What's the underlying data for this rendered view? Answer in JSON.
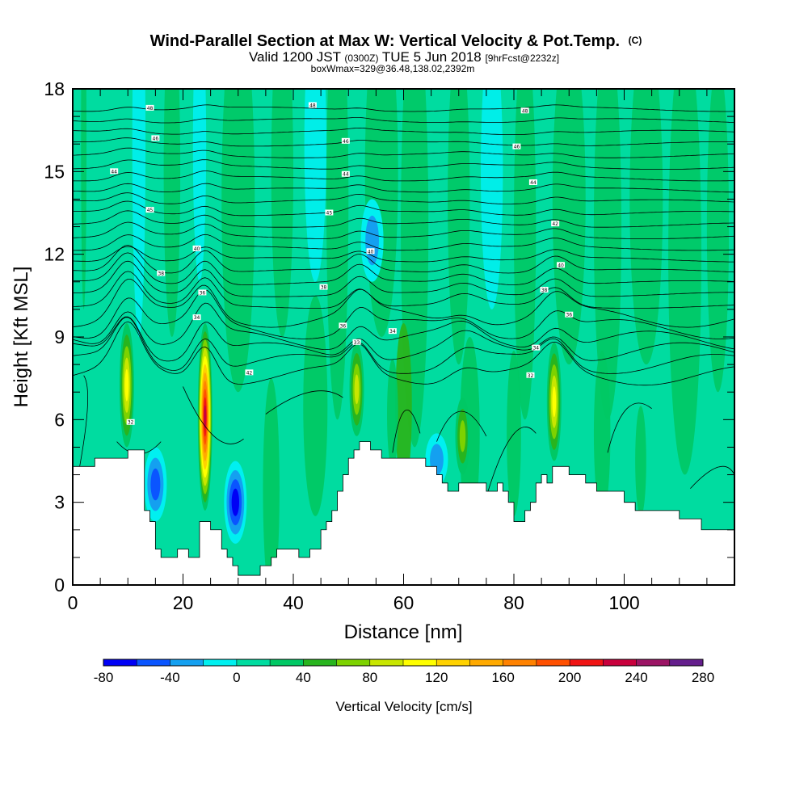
{
  "chart_data": {
    "type": "heatmap",
    "title": "Wind-Parallel Section at Max W: Vertical Velocity & Pot.Temp.",
    "title_suffix": "(C)",
    "subtitle_lead": "Valid 1200 JST",
    "subtitle_utc": "(0300Z)",
    "subtitle_date": "TUE 5 Jun 2018",
    "subtitle_fcst": "[9hrFcst@2232z]",
    "subtitle2": "boxWmax=329@36.48,138.02,2392m",
    "xlabel": "Distance [nm]",
    "ylabel": "Height [Kft MSL]",
    "xlim": [
      0,
      120
    ],
    "ylim": [
      0,
      18
    ],
    "x_ticks": [
      "0",
      "20",
      "40",
      "60",
      "80",
      "100"
    ],
    "y_ticks": [
      "0",
      "3",
      "6",
      "9",
      "12",
      "15",
      "18"
    ],
    "colorbar": {
      "label": "Vertical Velocity [cm/s]",
      "min": -80,
      "max": 280,
      "tick_labels": [
        "-80",
        "-40",
        "0",
        "40",
        "80",
        "120",
        "160",
        "200",
        "240",
        "280"
      ],
      "colors": [
        "#0000f5",
        "#0a55ff",
        "#14a0f0",
        "#00f0f0",
        "#00dca0",
        "#00c864",
        "#28b41e",
        "#7dd200",
        "#c8e600",
        "#ffff00",
        "#ffd200",
        "#ffaa00",
        "#ff8200",
        "#ff5000",
        "#f01414",
        "#c8003c",
        "#9b1464",
        "#641e8c"
      ]
    },
    "terrain": {
      "x": [
        0,
        3,
        4,
        7,
        10,
        11,
        13,
        14,
        15,
        16,
        18,
        19,
        20,
        21,
        22,
        23,
        24,
        25,
        26,
        27,
        28,
        29,
        30,
        31,
        32,
        33,
        34,
        35,
        36,
        37,
        38,
        39,
        40,
        41,
        42,
        43,
        44,
        45,
        46,
        47,
        48,
        49,
        50,
        51,
        52,
        53,
        54,
        55,
        56,
        57,
        58,
        59,
        60,
        61,
        62,
        63,
        64,
        65,
        66,
        67,
        68,
        69,
        70,
        71,
        72,
        73,
        74,
        75,
        76,
        77,
        78,
        79,
        80,
        81,
        82,
        83,
        84,
        85,
        86,
        87,
        88,
        89,
        90,
        91,
        92,
        93,
        94,
        95,
        96,
        97,
        98,
        99,
        100,
        101,
        102,
        103,
        104,
        105,
        106,
        107,
        108,
        109,
        110,
        111,
        112,
        113,
        114,
        115,
        116,
        117,
        118,
        119,
        120
      ],
      "height_kft": [
        4.3,
        4.3,
        4.6,
        4.6,
        4.9,
        4.9,
        2.7,
        2.3,
        1.3,
        1.0,
        1.0,
        1.3,
        1.3,
        1.0,
        1.0,
        2.3,
        2.3,
        2.0,
        2.0,
        1.3,
        1.0,
        0.7,
        0.35,
        0.35,
        0.35,
        0.35,
        0.7,
        0.7,
        1.0,
        1.3,
        1.3,
        1.3,
        1.3,
        1.0,
        1.0,
        1.3,
        1.3,
        2.0,
        2.3,
        2.7,
        3.4,
        4.0,
        4.6,
        4.9,
        5.2,
        5.2,
        4.9,
        4.9,
        4.6,
        4.6,
        4.6,
        4.6,
        4.6,
        4.6,
        4.6,
        4.6,
        4.3,
        4.3,
        4.0,
        3.7,
        3.4,
        3.4,
        3.7,
        3.7,
        3.7,
        3.7,
        3.7,
        3.4,
        3.4,
        3.7,
        3.4,
        3.0,
        2.3,
        2.3,
        2.7,
        3.0,
        3.7,
        4.0,
        3.7,
        4.3,
        4.3,
        4.3,
        4.0,
        4.0,
        4.0,
        3.7,
        3.7,
        3.4,
        3.4,
        3.4,
        3.4,
        3.4,
        3.0,
        3.0,
        2.7,
        2.7,
        2.7,
        2.7,
        2.7,
        2.7,
        2.7,
        2.7,
        2.4,
        2.4,
        2.4,
        2.4,
        2.0,
        2.0,
        2.0,
        2.0,
        2.0,
        2.0,
        2.0
      ]
    },
    "updrafts": [
      {
        "x": 9.8,
        "top_kft": 9.5,
        "bottom_kft": 5.0,
        "peak_cm_s": 120
      },
      {
        "x": 24.0,
        "top_kft": 9.5,
        "bottom_kft": 2.7,
        "peak_cm_s": 240
      },
      {
        "x": 51.5,
        "top_kft": 8.8,
        "bottom_kft": 5.4,
        "peak_cm_s": 90
      },
      {
        "x": 70.7,
        "top_kft": 6.8,
        "bottom_kft": 4.0,
        "peak_cm_s": 80
      },
      {
        "x": 87.3,
        "top_kft": 8.8,
        "bottom_kft": 4.5,
        "peak_cm_s": 110
      }
    ],
    "downdrafts": [
      {
        "x": 15.0,
        "top_kft": 5.0,
        "bottom_kft": 2.3,
        "peak_cm_s": -60
      },
      {
        "x": 29.5,
        "top_kft": 4.5,
        "bottom_kft": 1.5,
        "peak_cm_s": -70
      },
      {
        "x": 66.0,
        "top_kft": 5.5,
        "bottom_kft": 3.6,
        "peak_cm_s": -40
      },
      {
        "x": 54.3,
        "top_kft": 14.0,
        "bottom_kft": 11.0,
        "peak_cm_s": -30
      }
    ],
    "theta_contour_labels": [
      {
        "x": 14,
        "y_kft": 17.3,
        "text": "48"
      },
      {
        "x": 43.5,
        "y_kft": 17.4,
        "text": "48"
      },
      {
        "x": 82,
        "y_kft": 17.2,
        "text": "48"
      },
      {
        "x": 15,
        "y_kft": 16.2,
        "text": "46"
      },
      {
        "x": 49.5,
        "y_kft": 16.1,
        "text": "46"
      },
      {
        "x": 80.5,
        "y_kft": 15.9,
        "text": "46"
      },
      {
        "x": 7.5,
        "y_kft": 15.0,
        "text": "44"
      },
      {
        "x": 49.5,
        "y_kft": 14.9,
        "text": "44"
      },
      {
        "x": 83.5,
        "y_kft": 14.6,
        "text": "44"
      },
      {
        "x": 14,
        "y_kft": 13.6,
        "text": "45"
      },
      {
        "x": 46.5,
        "y_kft": 13.5,
        "text": "45"
      },
      {
        "x": 87.5,
        "y_kft": 13.1,
        "text": "42"
      },
      {
        "x": 22.5,
        "y_kft": 12.2,
        "text": "40"
      },
      {
        "x": 54,
        "y_kft": 12.1,
        "text": "40"
      },
      {
        "x": 88.5,
        "y_kft": 11.6,
        "text": "40"
      },
      {
        "x": 16,
        "y_kft": 11.3,
        "text": "38"
      },
      {
        "x": 45.5,
        "y_kft": 10.8,
        "text": "38"
      },
      {
        "x": 85.5,
        "y_kft": 10.7,
        "text": "38"
      },
      {
        "x": 23.5,
        "y_kft": 10.6,
        "text": "36"
      },
      {
        "x": 49,
        "y_kft": 9.4,
        "text": "36"
      },
      {
        "x": 90,
        "y_kft": 9.8,
        "text": "36"
      },
      {
        "x": 22.5,
        "y_kft": 9.7,
        "text": "34"
      },
      {
        "x": 58,
        "y_kft": 9.2,
        "text": "34"
      },
      {
        "x": 84,
        "y_kft": 8.6,
        "text": "34"
      },
      {
        "x": 51.5,
        "y_kft": 8.8,
        "text": "33"
      },
      {
        "x": 32,
        "y_kft": 7.7,
        "text": "42"
      },
      {
        "x": 83,
        "y_kft": 7.6,
        "text": "32"
      },
      {
        "x": 10.5,
        "y_kft": 5.9,
        "text": "32"
      }
    ]
  }
}
